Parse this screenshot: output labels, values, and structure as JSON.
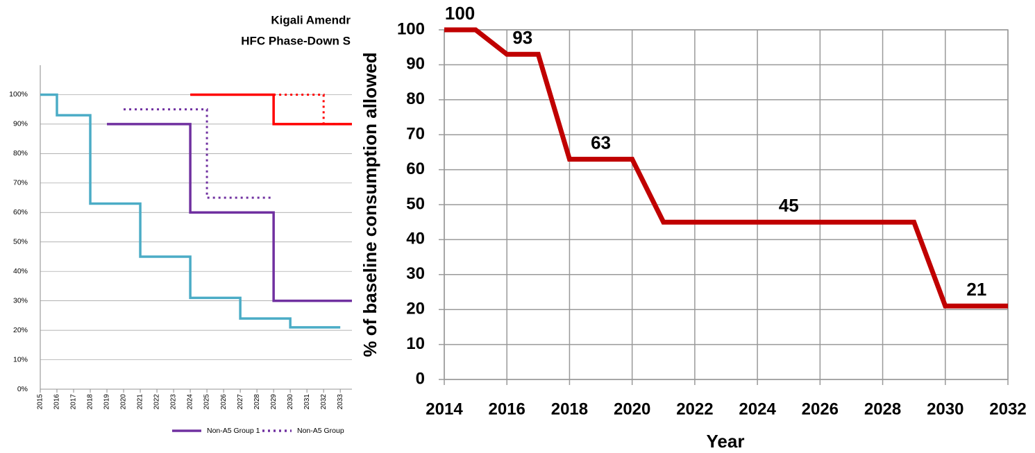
{
  "chart_data": [
    {
      "type": "step",
      "title": [
        "Kigali Amendr",
        "HFC Phase-Down S"
      ],
      "x": [
        2015,
        2016,
        2017,
        2018,
        2019,
        2020,
        2021,
        2022,
        2023,
        2024,
        2025,
        2026,
        2027,
        2028,
        2029,
        2030,
        2031,
        2032,
        2033
      ],
      "xlim": [
        2015,
        2033.7
      ],
      "xticks": [
        2015,
        2016,
        2017,
        2018,
        2019,
        2020,
        2021,
        2022,
        2023,
        2024,
        2025,
        2026,
        2027,
        2028,
        2029,
        2030,
        2031,
        2032,
        2033
      ],
      "ylim": [
        0,
        110
      ],
      "yticks": [
        {
          "value": 0,
          "label": "0%"
        },
        {
          "value": 10,
          "label": "10%"
        },
        {
          "value": 20,
          "label": "20%"
        },
        {
          "value": 30,
          "label": "30%"
        },
        {
          "value": 40,
          "label": "40%"
        },
        {
          "value": 50,
          "label": "50%"
        },
        {
          "value": 60,
          "label": "60%"
        },
        {
          "value": 70,
          "label": "70%"
        },
        {
          "value": 80,
          "label": "80%"
        },
        {
          "value": 90,
          "label": "90%"
        },
        {
          "value": 100,
          "label": "100%"
        }
      ],
      "grid": true,
      "series": [
        {
          "color": "#4bacc6",
          "dash": "solid",
          "values": [
            100,
            93,
            93,
            63,
            63,
            63,
            45,
            45,
            45,
            31,
            31,
            31,
            24,
            24,
            24,
            21,
            21,
            21,
            null
          ]
        },
        {
          "color": "#ff0000",
          "dash": "solid",
          "values": [
            null,
            null,
            null,
            null,
            null,
            null,
            null,
            null,
            null,
            100,
            100,
            100,
            100,
            100,
            90,
            90,
            90,
            90,
            90
          ]
        },
        {
          "color": "#ff0000",
          "dash": "dotted",
          "values": [
            null,
            null,
            null,
            null,
            null,
            null,
            null,
            null,
            null,
            null,
            null,
            null,
            null,
            null,
            100,
            100,
            100,
            90,
            null
          ]
        },
        {
          "name": "Non-A5 Group 1",
          "color": "#7030a0",
          "dash": "solid",
          "values": [
            null,
            null,
            null,
            null,
            90,
            90,
            90,
            90,
            90,
            60,
            60,
            60,
            60,
            60,
            30,
            30,
            30,
            30,
            30
          ]
        },
        {
          "name": "Non-A5 Group",
          "color": "#7030a0",
          "dash": "dotted",
          "values": [
            null,
            null,
            null,
            null,
            null,
            95,
            95,
            95,
            95,
            95,
            65,
            65,
            65,
            65,
            null,
            null,
            null,
            null,
            null
          ]
        }
      ],
      "legend": "bottom"
    },
    {
      "type": "line",
      "xlabel": "Year",
      "ylabel": "% of baseline consumption allowed",
      "x": [
        2014,
        2015,
        2016,
        2017,
        2018,
        2020,
        2021,
        2029,
        2030,
        2032
      ],
      "xlim": [
        2014,
        2032
      ],
      "xticks": [
        2014,
        2016,
        2018,
        2020,
        2022,
        2024,
        2026,
        2028,
        2030,
        2032
      ],
      "ylim": [
        0,
        100
      ],
      "yticks": [
        0,
        10,
        20,
        30,
        40,
        50,
        60,
        70,
        80,
        90,
        100
      ],
      "grid": true,
      "color": "#c00000",
      "values": [
        100,
        100,
        93,
        93,
        63,
        63,
        45,
        45,
        21,
        21
      ],
      "value_labels": [
        "100",
        null,
        "93",
        null,
        "63",
        null,
        "45",
        null,
        "21",
        null
      ]
    }
  ]
}
